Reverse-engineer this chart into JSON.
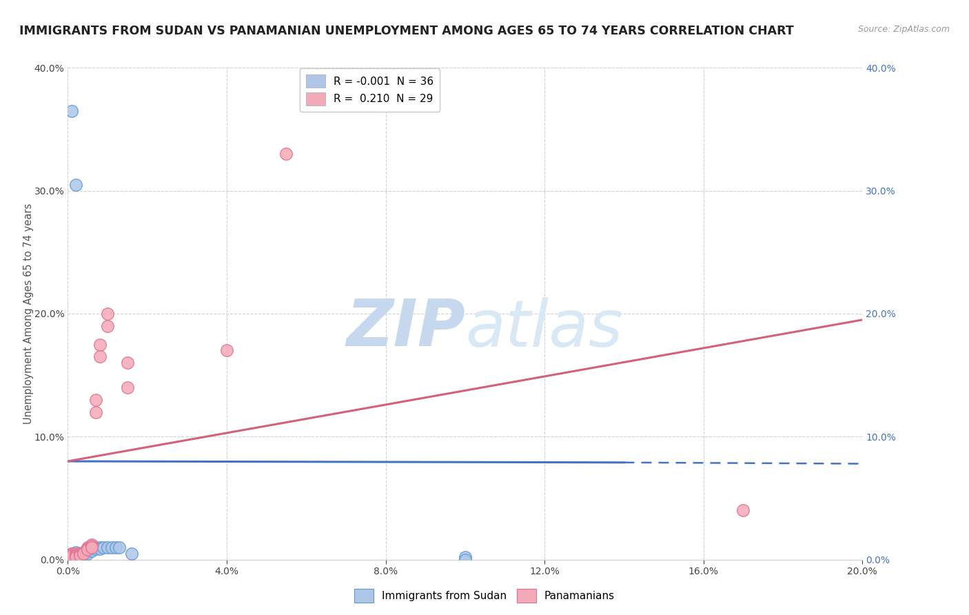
{
  "title": "IMMIGRANTS FROM SUDAN VS PANAMANIAN UNEMPLOYMENT AMONG AGES 65 TO 74 YEARS CORRELATION CHART",
  "source": "Source: ZipAtlas.com",
  "ylabel": "Unemployment Among Ages 65 to 74 years",
  "xlim": [
    0.0,
    0.2
  ],
  "ylim": [
    0.0,
    0.4
  ],
  "xticks": [
    0.0,
    0.04,
    0.08,
    0.12,
    0.16,
    0.2
  ],
  "yticks": [
    0.0,
    0.1,
    0.2,
    0.3,
    0.4
  ],
  "legend_entries": [
    {
      "label": "R = -0.001  N = 36",
      "color": "#aec6e8"
    },
    {
      "label": "R =  0.210  N = 29",
      "color": "#f4a9b8"
    }
  ],
  "series1_color": "#aec6e8",
  "series2_color": "#f4a9b8",
  "series1_edge": "#5b9bd5",
  "series2_edge": "#e07090",
  "watermark_zip": "ZIP",
  "watermark_atlas": "atlas",
  "sudan_points": [
    [
      0.001,
      0.005
    ],
    [
      0.001,
      0.003
    ],
    [
      0.001,
      0.002
    ],
    [
      0.001,
      0.001
    ],
    [
      0.002,
      0.006
    ],
    [
      0.002,
      0.004
    ],
    [
      0.002,
      0.003
    ],
    [
      0.002,
      0.002
    ],
    [
      0.002,
      0.001
    ],
    [
      0.003,
      0.005
    ],
    [
      0.003,
      0.004
    ],
    [
      0.003,
      0.003
    ],
    [
      0.003,
      0.002
    ],
    [
      0.004,
      0.005
    ],
    [
      0.004,
      0.004
    ],
    [
      0.004,
      0.003
    ],
    [
      0.005,
      0.008
    ],
    [
      0.005,
      0.006
    ],
    [
      0.005,
      0.005
    ],
    [
      0.006,
      0.009
    ],
    [
      0.006,
      0.008
    ],
    [
      0.006,
      0.007
    ],
    [
      0.007,
      0.01
    ],
    [
      0.007,
      0.009
    ],
    [
      0.008,
      0.01
    ],
    [
      0.008,
      0.009
    ],
    [
      0.009,
      0.01
    ],
    [
      0.01,
      0.01
    ],
    [
      0.011,
      0.01
    ],
    [
      0.012,
      0.01
    ],
    [
      0.013,
      0.01
    ],
    [
      0.016,
      0.005
    ],
    [
      0.001,
      0.365
    ],
    [
      0.002,
      0.305
    ],
    [
      0.1,
      0.002
    ],
    [
      0.1,
      0.0
    ]
  ],
  "panama_points": [
    [
      0.001,
      0.005
    ],
    [
      0.001,
      0.004
    ],
    [
      0.001,
      0.003
    ],
    [
      0.002,
      0.005
    ],
    [
      0.002,
      0.004
    ],
    [
      0.002,
      0.003
    ],
    [
      0.002,
      0.002
    ],
    [
      0.003,
      0.005
    ],
    [
      0.003,
      0.004
    ],
    [
      0.003,
      0.003
    ],
    [
      0.004,
      0.006
    ],
    [
      0.004,
      0.005
    ],
    [
      0.005,
      0.01
    ],
    [
      0.005,
      0.009
    ],
    [
      0.005,
      0.008
    ],
    [
      0.006,
      0.012
    ],
    [
      0.006,
      0.011
    ],
    [
      0.006,
      0.01
    ],
    [
      0.007,
      0.13
    ],
    [
      0.007,
      0.12
    ],
    [
      0.008,
      0.175
    ],
    [
      0.008,
      0.165
    ],
    [
      0.01,
      0.2
    ],
    [
      0.01,
      0.19
    ],
    [
      0.015,
      0.16
    ],
    [
      0.015,
      0.14
    ],
    [
      0.04,
      0.17
    ],
    [
      0.055,
      0.33
    ],
    [
      0.17,
      0.04
    ]
  ],
  "sudan_line_solid": {
    "x": [
      0.0,
      0.14
    ],
    "y": [
      0.08,
      0.079
    ]
  },
  "sudan_line_dashed": {
    "x": [
      0.14,
      0.2
    ],
    "y": [
      0.079,
      0.078
    ]
  },
  "panama_line": {
    "x": [
      0.0,
      0.2
    ],
    "y": [
      0.08,
      0.195
    ]
  },
  "sudan_line_color": "#4472c4",
  "panama_line_color": "#d4607a",
  "grid_color": "#cccccc",
  "grid_style": "--",
  "background_color": "#ffffff",
  "title_color": "#222222",
  "axis_label_color": "#555555",
  "right_tick_color": "#4472c4",
  "watermark_color": "#d8e8f5",
  "watermark_atlas_color": "#c8d8e8"
}
